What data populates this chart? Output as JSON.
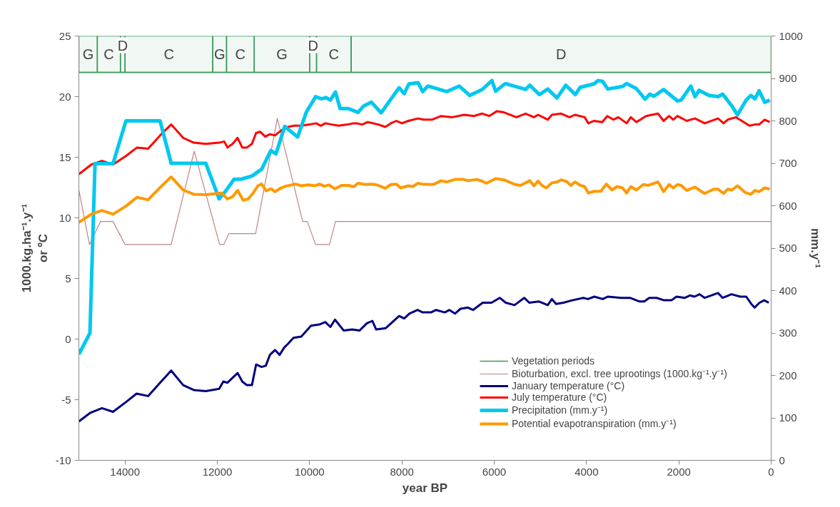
{
  "chart_data": {
    "type": "line",
    "xlabel": "year BP",
    "ylabel": "1000.kg.ha⁻¹.y⁻¹\nor ºC",
    "y2label": "mm.y⁻¹",
    "xlim": [
      15000,
      0
    ],
    "xticks": [
      14000,
      12000,
      10000,
      8000,
      6000,
      4000,
      2000,
      0
    ],
    "ylim": [
      -10,
      25
    ],
    "yticks": [
      -10,
      -5,
      0,
      5,
      10,
      15,
      20,
      25
    ],
    "y2lim": [
      0,
      1000
    ],
    "y2ticks": [
      0,
      100,
      200,
      300,
      400,
      500,
      600,
      700,
      800,
      900,
      1000
    ],
    "grid": false,
    "legend": "bottom",
    "marker": "none",
    "line_style": "solid",
    "bands": [
      {
        "axis": "x",
        "from": 15000,
        "to": 14600,
        "label": "G",
        "color": "#3c9b5e"
      },
      {
        "axis": "x",
        "from": 14600,
        "to": 14100,
        "label": "C",
        "color": "#3c9b5e"
      },
      {
        "axis": "x",
        "from": 14100,
        "to": 14000,
        "label": "D",
        "color": "#3c9b5e"
      },
      {
        "axis": "x",
        "from": 14000,
        "to": 12100,
        "label": "C",
        "color": "#3c9b5e"
      },
      {
        "axis": "x",
        "from": 12100,
        "to": 11800,
        "label": "G",
        "color": "#3c9b5e"
      },
      {
        "axis": "x",
        "from": 11800,
        "to": 11200,
        "label": "C",
        "color": "#3c9b5e"
      },
      {
        "axis": "x",
        "from": 11200,
        "to": 10000,
        "label": "G",
        "color": "#3c9b5e"
      },
      {
        "axis": "x",
        "from": 10000,
        "to": 9850,
        "label": "D",
        "color": "#3c9b5e"
      },
      {
        "axis": "x",
        "from": 9850,
        "to": 9100,
        "label": "C",
        "color": "#3c9b5e"
      },
      {
        "axis": "x",
        "from": 9100,
        "to": 0,
        "label": "D",
        "color": "#3c9b5e"
      }
    ],
    "series": [
      {
        "name": "Vegetation periods",
        "color": "#3c9b5e",
        "x": [
          15000,
          0
        ],
        "values": [
          22,
          22
        ]
      },
      {
        "name": "Bioturbation, excl. tree uprootings (1000.kg⁻¹.y⁻¹)",
        "color": "#c08484",
        "x": [
          15000,
          14770,
          14530,
          14260,
          14000,
          13000,
          12500,
          11950,
          11860,
          11750,
          11170,
          10700,
          10150,
          10050,
          9870,
          9570,
          9440,
          0
        ],
        "values": [
          12.3,
          7.8,
          9.7,
          9.7,
          7.8,
          7.8,
          15.5,
          7.8,
          7.8,
          8.7,
          8.7,
          18.2,
          9.7,
          9.7,
          7.8,
          7.8,
          9.7,
          9.7
        ]
      },
      {
        "name": "January temperature (°C)",
        "color": "#000080",
        "x": [
          15000,
          14760,
          14500,
          14260,
          13980,
          13750,
          13500,
          13240,
          13000,
          12740,
          12510,
          12250,
          11960,
          11870,
          11780,
          11560,
          11460,
          11360,
          11250,
          11160,
          11040,
          10950,
          10860,
          10750,
          10650,
          10550,
          10470,
          10350,
          10180,
          9970,
          9790,
          9660,
          9550,
          9450,
          9260,
          9080,
          8920,
          8760,
          8640,
          8560,
          8350,
          8060,
          7950,
          7840,
          7660,
          7550,
          7370,
          7260,
          7070,
          6970,
          6850,
          6730,
          6570,
          6460,
          6250,
          6060,
          5880,
          5750,
          5560,
          5350,
          5240,
          5030,
          4840,
          4750,
          4660,
          4500,
          4310,
          4070,
          3970,
          3830,
          3650,
          3540,
          3250,
          3060,
          2850,
          2750,
          2640,
          2480,
          2320,
          2160,
          2050,
          1870,
          1760,
          1660,
          1550,
          1440,
          1150,
          1050,
          860,
          670,
          540,
          430,
          360,
          250,
          150,
          50
        ],
        "values": [
          -6.8,
          -6.1,
          -5.7,
          -6.0,
          -5.2,
          -4.5,
          -4.7,
          -3.6,
          -2.6,
          -3.8,
          -4.2,
          -4.3,
          -4.1,
          -3.5,
          -3.6,
          -2.8,
          -3.5,
          -3.8,
          -3.8,
          -2.1,
          -2.3,
          -2.2,
          -1.3,
          -0.9,
          -1.3,
          -0.7,
          -0.4,
          0.1,
          0.2,
          1.1,
          1.2,
          1.4,
          1.0,
          1.6,
          0.7,
          0.8,
          0.7,
          1.3,
          1.5,
          0.8,
          0.9,
          1.9,
          1.7,
          2.1,
          2.4,
          2.2,
          2.2,
          2.4,
          2.2,
          2.4,
          2.1,
          2.5,
          2.6,
          2.4,
          3.0,
          3.0,
          3.4,
          3.0,
          2.8,
          3.4,
          3.0,
          3.1,
          2.8,
          3.3,
          2.9,
          3.0,
          3.2,
          3.4,
          3.3,
          3.5,
          3.3,
          3.5,
          3.4,
          3.4,
          3.1,
          3.1,
          3.4,
          3.4,
          3.2,
          3.2,
          3.5,
          3.4,
          3.6,
          3.5,
          3.7,
          3.4,
          3.8,
          3.4,
          3.7,
          3.5,
          3.5,
          2.9,
          2.6,
          3.0,
          3.2,
          3.0
        ]
      },
      {
        "name": "July temperature (°C)",
        "color": "#ff0000",
        "x": [
          15000,
          14730,
          14500,
          14260,
          13980,
          13740,
          13500,
          13240,
          13000,
          12740,
          12510,
          12250,
          11960,
          11850,
          11780,
          11670,
          11560,
          11460,
          11360,
          11250,
          11160,
          11070,
          10960,
          10860,
          10750,
          10620,
          10470,
          10340,
          10180,
          10000,
          9860,
          9760,
          9660,
          9520,
          9370,
          9180,
          9050,
          8980,
          8860,
          8740,
          8510,
          8360,
          8240,
          8120,
          8000,
          7860,
          7650,
          7530,
          7350,
          7150,
          6910,
          6650,
          6440,
          6260,
          6110,
          5940,
          5790,
          5520,
          5320,
          5140,
          5050,
          4840,
          4750,
          4550,
          4370,
          4250,
          4040,
          3960,
          3840,
          3660,
          3550,
          3420,
          3310,
          3130,
          3040,
          2920,
          2710,
          2450,
          2330,
          2210,
          2120,
          2030,
          1830,
          1650,
          1440,
          1150,
          1030,
          940,
          760,
          470,
          350,
          260,
          140,
          30
        ],
        "values": [
          13.6,
          14.4,
          14.7,
          14.4,
          15.1,
          15.8,
          15.7,
          16.8,
          17.7,
          16.6,
          16.2,
          16.1,
          16.2,
          16.3,
          15.8,
          16.1,
          16.6,
          15.8,
          15.8,
          16.1,
          17.0,
          17.1,
          16.7,
          16.9,
          16.8,
          17.2,
          17.5,
          17.6,
          17.6,
          17.7,
          17.8,
          17.6,
          17.8,
          17.7,
          17.6,
          17.7,
          17.8,
          17.8,
          17.7,
          17.9,
          17.7,
          17.5,
          17.8,
          18.0,
          17.8,
          18.0,
          18.2,
          18.1,
          18.1,
          18.4,
          18.3,
          18.5,
          18.4,
          18.6,
          18.4,
          18.8,
          18.7,
          18.3,
          18.6,
          18.3,
          18.5,
          18.1,
          18.5,
          18.6,
          18.3,
          18.5,
          18.3,
          17.8,
          18.0,
          17.9,
          18.4,
          18.1,
          18.3,
          17.8,
          18.3,
          17.9,
          18.4,
          18.6,
          18.0,
          18.4,
          18.1,
          18.4,
          18.0,
          18.2,
          17.8,
          18.2,
          17.8,
          18.1,
          18.3,
          17.6,
          17.7,
          17.7,
          18.1,
          17.9
        ]
      },
      {
        "name": "Precipitation (mm.y⁻¹)",
        "color": "#00c8f0",
        "axis": "y2",
        "x": [
          15000,
          14760,
          14650,
          14260,
          13980,
          13240,
          13000,
          12250,
          11960,
          11830,
          11640,
          11470,
          11250,
          11040,
          10840,
          10730,
          10540,
          10260,
          10070,
          9870,
          9740,
          9650,
          9550,
          9440,
          9340,
          9160,
          8950,
          8830,
          8660,
          8450,
          8240,
          8060,
          7950,
          7850,
          7650,
          7550,
          7440,
          7030,
          6760,
          6530,
          6260,
          6050,
          5970,
          5760,
          5320,
          5230,
          5020,
          4840,
          4640,
          4450,
          4240,
          4140,
          3840,
          3750,
          3650,
          3540,
          3220,
          3130,
          2920,
          2730,
          2630,
          2540,
          2330,
          2030,
          1950,
          1740,
          1650,
          1560,
          1350,
          1150,
          1050,
          850,
          730,
          540,
          440,
          350,
          260,
          140,
          30
        ],
        "values": [
          250,
          300,
          699,
          699,
          800,
          800,
          700,
          700,
          616,
          633,
          662,
          663,
          670,
          686,
          730,
          722,
          787,
          762,
          821,
          857,
          852,
          855,
          849,
          868,
          829,
          829,
          820,
          835,
          844,
          819,
          851,
          878,
          864,
          887,
          890,
          869,
          882,
          869,
          882,
          860,
          874,
          895,
          870,
          888,
          874,
          884,
          862,
          875,
          854,
          884,
          862,
          879,
          887,
          895,
          893,
          875,
          881,
          888,
          876,
          851,
          863,
          858,
          874,
          847,
          849,
          882,
          857,
          872,
          860,
          857,
          863,
          835,
          814,
          849,
          860,
          852,
          871,
          844,
          849
        ]
      },
      {
        "name": "Potential evapotranspiration (mm.y⁻¹)",
        "color": "#ff9900",
        "axis": "y2",
        "x": [
          15000,
          14730,
          14500,
          14260,
          13980,
          13740,
          13500,
          13240,
          13000,
          12740,
          12510,
          12250,
          11910,
          11780,
          11670,
          11560,
          11440,
          11330,
          11230,
          11120,
          11040,
          10940,
          10830,
          10750,
          10620,
          10520,
          10310,
          10180,
          10020,
          9890,
          9790,
          9680,
          9580,
          9450,
          9310,
          9160,
          9040,
          8950,
          8800,
          8680,
          8570,
          8450,
          8360,
          8240,
          8120,
          8030,
          7860,
          7770,
          7650,
          7560,
          7380,
          7300,
          7150,
          7030,
          6850,
          6670,
          6560,
          6380,
          6260,
          6170,
          5970,
          5790,
          5550,
          5430,
          5230,
          5140,
          5050,
          4960,
          4870,
          4750,
          4640,
          4550,
          4430,
          4340,
          4250,
          4130,
          4040,
          3960,
          3840,
          3690,
          3570,
          3450,
          3340,
          3220,
          3130,
          3040,
          2920,
          2770,
          2660,
          2450,
          2330,
          2210,
          2120,
          2030,
          1950,
          1830,
          1650,
          1530,
          1440,
          1240,
          1150,
          1030,
          940,
          850,
          730,
          560,
          440,
          350,
          260,
          140,
          30
        ],
        "values": [
          561,
          580,
          589,
          580,
          599,
          620,
          614,
          643,
          668,
          637,
          627,
          626,
          630,
          616,
          621,
          636,
          613,
          616,
          629,
          647,
          651,
          635,
          640,
          633,
          642,
          646,
          651,
          647,
          649,
          647,
          651,
          646,
          649,
          640,
          648,
          648,
          645,
          653,
          650,
          651,
          650,
          645,
          641,
          650,
          651,
          642,
          647,
          645,
          653,
          651,
          650,
          651,
          659,
          656,
          662,
          662,
          659,
          662,
          658,
          653,
          664,
          661,
          650,
          648,
          659,
          647,
          658,
          647,
          642,
          654,
          656,
          661,
          657,
          648,
          656,
          648,
          645,
          630,
          634,
          634,
          651,
          637,
          645,
          642,
          630,
          645,
          637,
          650,
          648,
          656,
          633,
          650,
          642,
          650,
          648,
          636,
          644,
          635,
          629,
          639,
          639,
          629,
          639,
          637,
          647,
          631,
          627,
          636,
          633,
          642,
          639
        ]
      }
    ]
  }
}
